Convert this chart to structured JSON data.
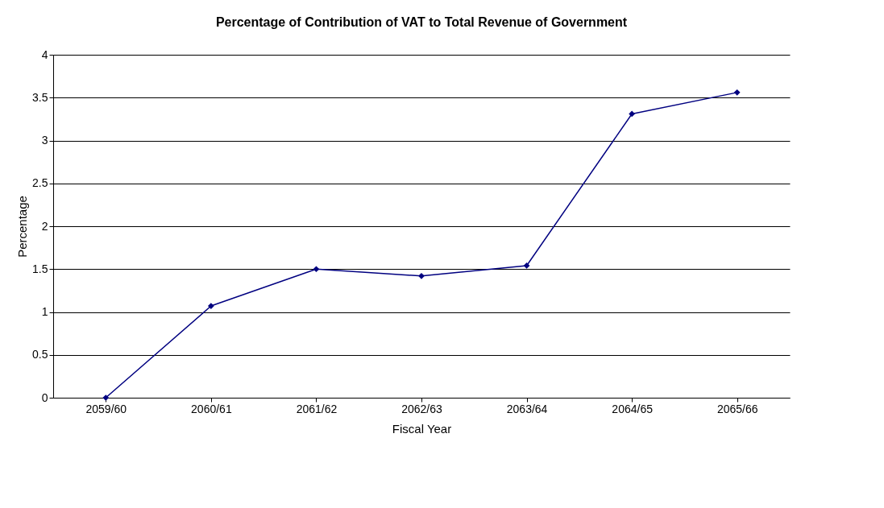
{
  "chart_data": {
    "type": "line",
    "title": "Percentage of Contribution of VAT to Total Revenue of Government",
    "xlabel": "Fiscal Year",
    "ylabel": "Percentage",
    "categories": [
      "2059/60",
      "2060/61",
      "2061/62",
      "2062/63",
      "2063/64",
      "2064/65",
      "2065/66"
    ],
    "series": [
      {
        "color": "#000080",
        "values": [
          0,
          1.07,
          1.5,
          1.42,
          1.54,
          3.31,
          3.56
        ]
      }
    ],
    "ylim": [
      0,
      4
    ],
    "yticks": [
      0,
      0.5,
      1,
      1.5,
      2,
      2.5,
      3,
      3.5,
      4
    ],
    "grid": "y",
    "marker": "diamond",
    "line_style": "solid"
  }
}
